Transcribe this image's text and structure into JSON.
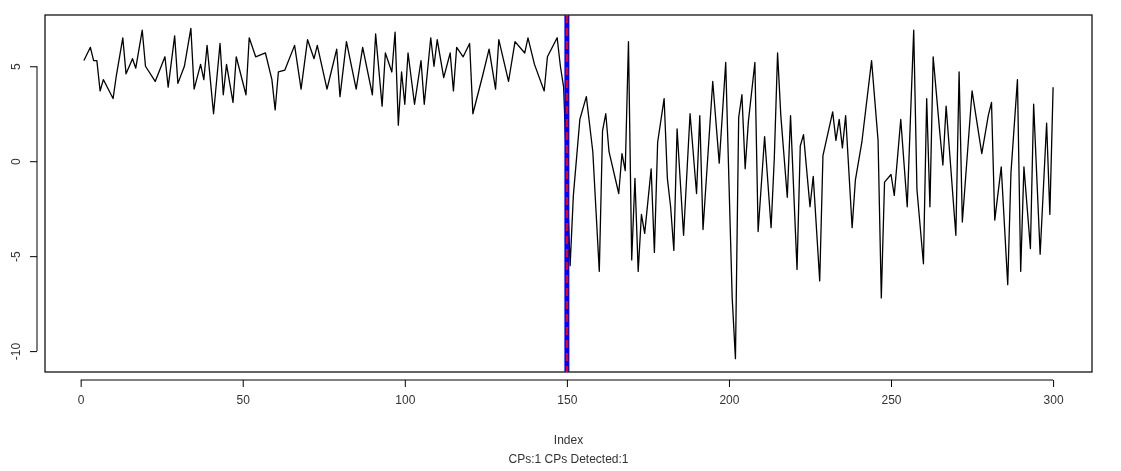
{
  "chart_data": {
    "type": "line",
    "xlabel": "Index",
    "subtitle": "CPs:1 CPs Detected:1",
    "xlim": [
      -11,
      312
    ],
    "ylim": [
      -11.1,
      7.7
    ],
    "xticks": [
      0,
      50,
      100,
      150,
      200,
      250,
      300
    ],
    "yticks": [
      -10,
      -5,
      0,
      5
    ],
    "ref_lines": [
      {
        "axis": "x",
        "value": 150,
        "color": "#0000ff",
        "line_style": "solid"
      },
      {
        "axis": "x",
        "value": 150,
        "color": "#ff0000",
        "line_style": "dashed"
      }
    ],
    "series": [
      {
        "color": "#000000",
        "x": [
          1,
          3,
          4,
          5,
          6,
          7,
          10,
          11,
          13,
          14,
          16,
          17,
          19,
          20,
          23,
          26,
          27,
          29,
          30,
          32,
          34,
          35,
          37,
          38,
          39,
          41,
          43,
          44,
          45,
          47,
          48,
          51,
          52,
          54,
          57,
          59,
          60,
          61,
          63,
          66,
          68,
          70,
          72,
          73,
          76,
          77,
          79,
          80,
          82,
          85,
          87,
          90,
          91,
          93,
          94,
          96,
          97,
          98,
          99,
          100,
          101,
          103,
          105,
          106,
          108,
          109,
          110,
          112,
          114,
          115,
          116,
          118,
          120,
          121,
          124,
          126,
          128,
          129,
          132,
          134,
          137,
          138,
          140,
          143,
          144,
          147,
          148,
          149,
          151,
          152,
          154,
          156,
          158,
          160,
          161,
          162,
          163,
          166,
          167,
          168,
          169,
          170,
          171,
          172,
          173,
          174,
          176,
          177,
          178,
          180,
          181,
          182,
          183,
          184,
          186,
          188,
          190,
          191,
          192,
          195,
          197,
          199,
          200,
          201,
          202,
          203,
          204,
          205,
          206,
          208,
          209,
          211,
          213,
          214,
          215,
          216,
          218,
          219,
          221,
          222,
          223,
          225,
          226,
          228,
          229,
          232,
          233,
          234,
          235,
          236,
          238,
          239,
          241,
          244,
          246,
          247,
          248,
          250,
          251,
          253,
          255,
          256,
          257,
          258,
          260,
          261,
          262,
          263,
          265,
          266,
          267,
          270,
          271,
          272,
          275,
          278,
          280,
          281,
          282,
          284,
          286,
          287,
          289,
          290,
          291,
          293,
          294,
          296,
          298,
          299,
          300
        ],
        "values": [
          5.3,
          6.0,
          5.3,
          5.3,
          3.7,
          4.3,
          3.3,
          4.5,
          6.5,
          4.6,
          5.4,
          4.9,
          6.9,
          5.0,
          4.2,
          5.5,
          3.9,
          6.6,
          4.1,
          5.0,
          7.0,
          3.8,
          5.1,
          4.3,
          6.1,
          2.5,
          6.2,
          3.5,
          5.1,
          3.1,
          5.5,
          3.5,
          6.5,
          5.5,
          5.7,
          4.3,
          2.7,
          4.7,
          4.8,
          6.1,
          3.8,
          6.4,
          5.4,
          6.1,
          3.8,
          4.5,
          5.9,
          3.4,
          6.3,
          3.8,
          6.0,
          3.5,
          6.7,
          2.9,
          5.7,
          4.7,
          6.8,
          1.9,
          4.7,
          3.0,
          5.7,
          3.0,
          5.3,
          3.0,
          6.5,
          5.0,
          6.4,
          4.4,
          5.7,
          3.7,
          6.0,
          5.5,
          6.2,
          2.5,
          4.5,
          5.9,
          3.8,
          6.4,
          4.2,
          6.3,
          5.7,
          6.5,
          5.1,
          3.7,
          5.5,
          6.5,
          5.0,
          3.9,
          -5.5,
          -1.8,
          2.2,
          3.4,
          0.5,
          -5.8,
          1.6,
          2.5,
          0.5,
          -1.7,
          0.4,
          -0.5,
          6.3,
          -5.2,
          -0.9,
          -5.8,
          -2.8,
          -3.8,
          -0.4,
          -4.8,
          1.0,
          3.3,
          -0.9,
          -2.4,
          -4.7,
          1.7,
          -3.9,
          2.5,
          -1.7,
          2.4,
          -3.6,
          4.2,
          -0.1,
          5.2,
          -1.1,
          -7.2,
          -10.4,
          2.3,
          3.5,
          -0.4,
          2.1,
          5.2,
          -3.7,
          1.3,
          -3.5,
          0.2,
          5.7,
          2.4,
          -1.9,
          2.4,
          -5.7,
          0.8,
          1.4,
          -2.4,
          -0.8,
          -6.3,
          0.3,
          2.6,
          1.1,
          2.2,
          0.7,
          2.4,
          -3.5,
          -1.0,
          1.0,
          5.3,
          1.1,
          -7.2,
          -1.1,
          -0.7,
          -1.8,
          2.2,
          -2.4,
          2.3,
          6.9,
          -1.5,
          -5.4,
          3.3,
          -2.4,
          5.5,
          1.6,
          -0.2,
          2.9,
          -3.9,
          4.7,
          -3.2,
          3.7,
          0.4,
          2.4,
          3.1,
          -3.1,
          -0.3,
          -6.5,
          -0.6,
          4.3,
          -5.8,
          -0.3,
          -4.6,
          3.0,
          -4.9,
          2.0,
          -2.8,
          3.9
        ]
      }
    ]
  }
}
